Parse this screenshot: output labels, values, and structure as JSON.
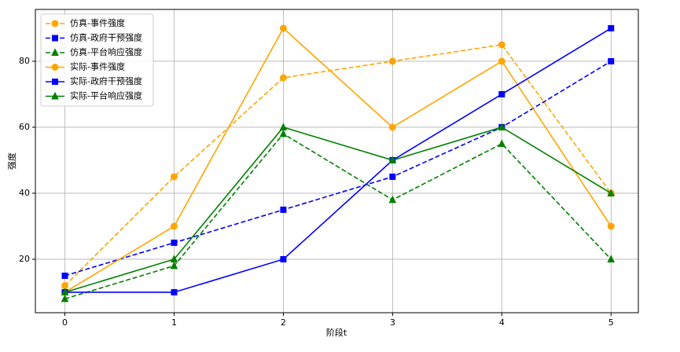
{
  "chart_data": {
    "type": "line",
    "xlabel": "阶段t",
    "ylabel": "强度",
    "x": [
      0,
      1,
      2,
      3,
      4,
      5
    ],
    "xlim": [
      -0.27,
      5.25
    ],
    "ylim": [
      3.8,
      95.7
    ],
    "xticks": [
      0,
      1,
      2,
      3,
      4,
      5
    ],
    "yticks": [
      20,
      40,
      60,
      80
    ],
    "grid": true,
    "legend": "upper left",
    "series": [
      {
        "name": "仿真-事件强度",
        "color": "#ffa500",
        "linestyle": "dashed",
        "marker": "circle",
        "values": [
          12,
          45,
          75,
          80,
          85,
          40
        ]
      },
      {
        "name": "仿真-政府干预强度",
        "color": "#0000ff",
        "linestyle": "dashed",
        "marker": "square",
        "values": [
          15,
          25,
          35,
          45,
          60,
          80
        ]
      },
      {
        "name": "仿真-平台响应强度",
        "color": "#008000",
        "linestyle": "dashed",
        "marker": "triangle",
        "values": [
          8,
          18,
          58,
          38,
          55,
          20
        ]
      },
      {
        "name": "实际-事件强度",
        "color": "#ffa500",
        "linestyle": "solid",
        "marker": "circle",
        "values": [
          10,
          30,
          90,
          60,
          80,
          30
        ]
      },
      {
        "name": "实际-政府干预强度",
        "color": "#0000ff",
        "linestyle": "solid",
        "marker": "square",
        "values": [
          10,
          10,
          20,
          50,
          70,
          90
        ]
      },
      {
        "name": "实际-平台响应强度",
        "color": "#008000",
        "linestyle": "solid",
        "marker": "triangle",
        "values": [
          10,
          20,
          60,
          50,
          60,
          40
        ]
      }
    ]
  }
}
